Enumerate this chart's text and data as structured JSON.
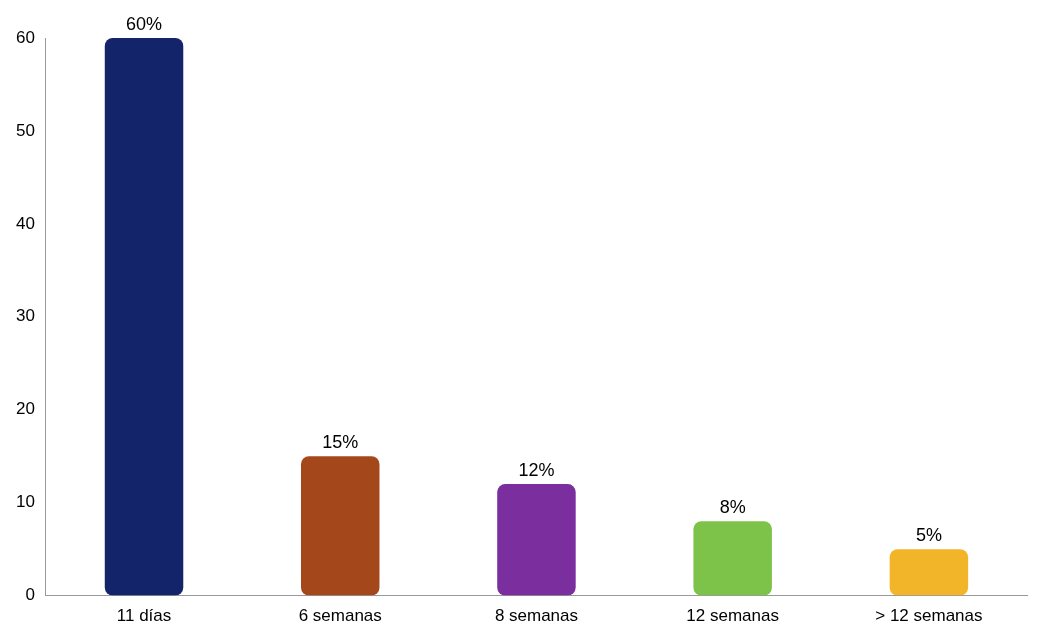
{
  "chart_data": {
    "type": "bar",
    "categories": [
      "11 días",
      "6 semanas",
      "8 semanas",
      "12 semanas",
      "> 12 semanas"
    ],
    "values": [
      60,
      15,
      12,
      8,
      5
    ],
    "colors": [
      "#14246a",
      "#a4481c",
      "#7b2f9f",
      "#7dc349",
      "#f2b52a"
    ],
    "value_labels": [
      "60%",
      "15%",
      "12%",
      "8%",
      "5%"
    ],
    "ylim": [
      0,
      60
    ],
    "yticks": [
      0,
      10,
      20,
      30,
      40,
      50,
      60
    ],
    "grid": false,
    "legend": false
  }
}
